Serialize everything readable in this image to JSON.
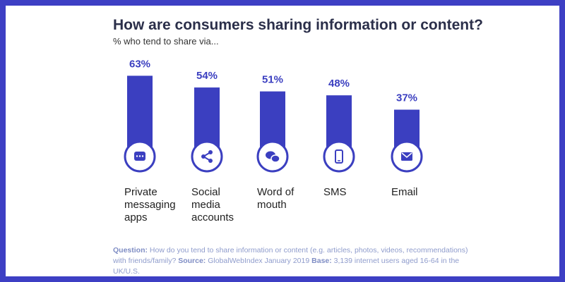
{
  "chart_data": {
    "type": "bar",
    "title": "How are consumers sharing information or content?",
    "subtitle": "% who tend to share via...",
    "categories": [
      "Private messaging apps",
      "Social media accounts",
      "Word of mouth",
      "SMS",
      "Email"
    ],
    "values": [
      63,
      54,
      51,
      48,
      37
    ],
    "value_labels": [
      "63%",
      "54%",
      "51%",
      "48%",
      "37%"
    ],
    "color": "#3b3fc0",
    "footnote": {
      "question_label": "Question:",
      "question": "How do you tend to share information or content (e.g. articles, photos, videos, recommendations) with friends/family?",
      "source_label": "Source:",
      "source": "GlobalWebIndex January 2019",
      "base_label": "Base:",
      "base": "3,139 internet users aged 16-64 in the UK/U.S."
    }
  }
}
